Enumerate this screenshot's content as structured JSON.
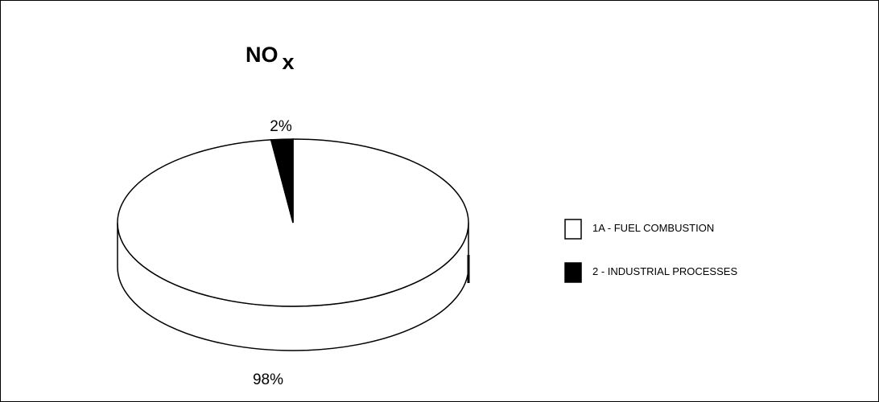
{
  "chart_data": {
    "type": "pie",
    "title": "NO",
    "title_subscript": "x",
    "categories": [
      "1A - FUEL COMBUSTION",
      "2 - INDUSTRIAL PROCESSES"
    ],
    "values": [
      98,
      2
    ],
    "value_labels": [
      "98%",
      "2%"
    ],
    "colors": [
      "#ffffff",
      "#000000"
    ],
    "legend_position": "right",
    "style": "3d"
  }
}
